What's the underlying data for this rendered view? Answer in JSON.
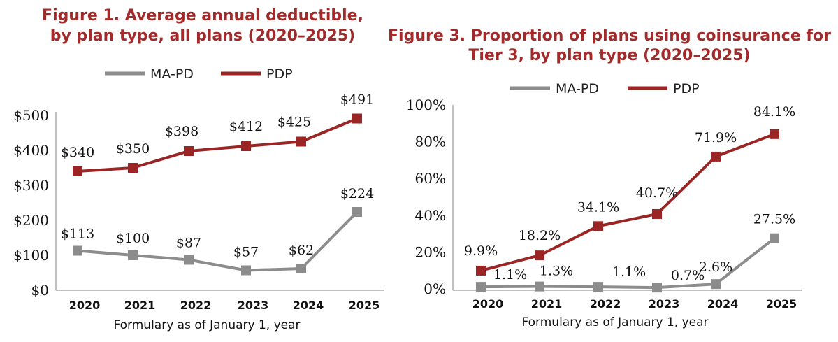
{
  "colors": {
    "mapd": "#8c8c8c",
    "pdp": "#9b2525",
    "title": "#a32a2a"
  },
  "chart_data": [
    {
      "type": "line",
      "title_line1": "Figure 1. Average annual deductible,",
      "title_line2": "by plan type, all plans (2020–2025)",
      "categories": [
        "2020",
        "2021",
        "2022",
        "2023",
        "2024",
        "2025"
      ],
      "xlabel": "Formulary as of January 1, year",
      "ylabel": "",
      "ylim": [
        0,
        500
      ],
      "yticks": [
        "$0",
        "$100",
        "$200",
        "$300",
        "$400",
        "$500"
      ],
      "legend_position": "top",
      "series": [
        {
          "name": "MA-PD",
          "values": [
            113,
            100,
            87,
            57,
            62,
            224
          ],
          "labels": [
            "$113",
            "$100",
            "$87",
            "$57",
            "$62",
            "$224"
          ]
        },
        {
          "name": "PDP",
          "values": [
            340,
            350,
            398,
            412,
            425,
            491
          ],
          "labels": [
            "$340",
            "$350",
            "$398",
            "$412",
            "$425",
            "$491"
          ]
        }
      ]
    },
    {
      "type": "line",
      "title_line1": "Figure 3. Proportion of plans using coinsurance for",
      "title_line2": "Tier 3, by plan type (2020–2025)",
      "categories": [
        "2020",
        "2021",
        "2022",
        "2023",
        "2024",
        "2025"
      ],
      "xlabel": "Formulary as of January 1, year",
      "ylabel": "",
      "ylim": [
        0,
        100
      ],
      "yticks": [
        "0%",
        "20%",
        "40%",
        "60%",
        "80%",
        "100%"
      ],
      "legend_position": "top",
      "series": [
        {
          "name": "MA-PD",
          "values": [
            1.1,
            1.3,
            1.1,
            0.7,
            2.6,
            27.5
          ],
          "labels": [
            "1.1%",
            "1.3%",
            "1.1%",
            "0.7%",
            "2.6%",
            "27.5%"
          ]
        },
        {
          "name": "PDP",
          "values": [
            9.9,
            18.2,
            34.1,
            40.7,
            71.9,
            84.1
          ],
          "labels": [
            "9.9%",
            "18.2%",
            "34.1%",
            "40.7%",
            "71.9%",
            "84.1%"
          ]
        }
      ]
    }
  ]
}
